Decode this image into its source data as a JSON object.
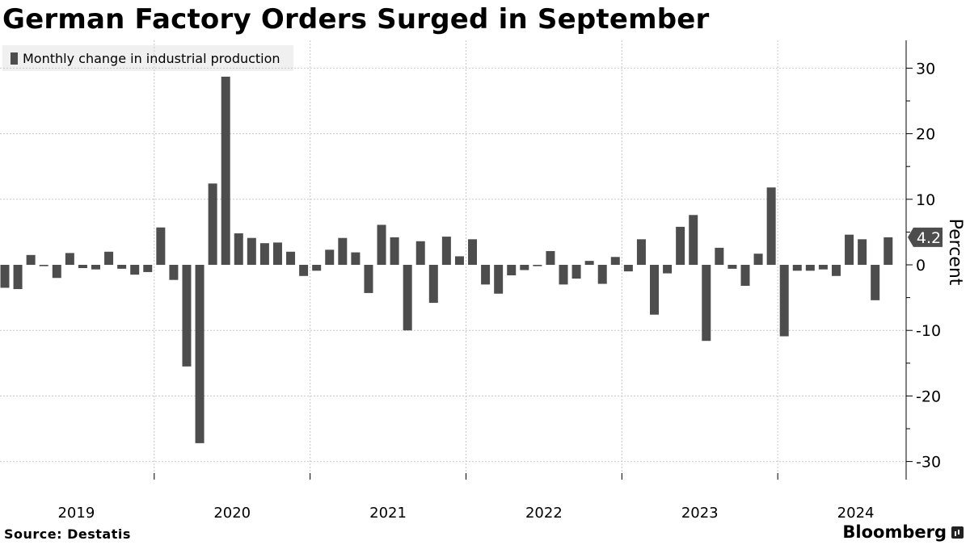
{
  "header": {
    "title": "German Factory Orders Surged in September"
  },
  "legend": {
    "label": "Monthly change in industrial production"
  },
  "footer": {
    "source": "Source:  Destatis",
    "brand": "Bloomberg"
  },
  "colors": {
    "bar": "#4d4d4d",
    "grid": "#c8c8c8",
    "axis": "#000000",
    "callout": "#4d4d4d"
  },
  "chart_data": {
    "type": "bar",
    "title": "German Factory Orders Surged in September",
    "ylabel": "Percent",
    "ylim": [
      -33,
      34
    ],
    "yticks": [
      30,
      20,
      10,
      0,
      -10,
      -20,
      -30
    ],
    "x_tick_labels": [
      "2019",
      "2020",
      "2021",
      "2022",
      "2023",
      "2024"
    ],
    "start": "2019-01",
    "series": [
      {
        "name": "Monthly change in industrial production",
        "values": [
          -3.5,
          -3.7,
          1.5,
          -0.2,
          -2.0,
          1.8,
          -0.5,
          -0.7,
          2.0,
          -0.6,
          -1.5,
          -1.1,
          5.7,
          -2.3,
          -15.5,
          -27.2,
          12.4,
          28.7,
          4.8,
          4.1,
          3.3,
          3.4,
          2.0,
          -1.7,
          -0.9,
          2.3,
          4.1,
          1.9,
          -4.3,
          6.1,
          4.2,
          -10.0,
          3.6,
          -5.8,
          4.3,
          1.3,
          3.9,
          -3.0,
          -4.4,
          -1.6,
          -0.8,
          -0.2,
          2.1,
          -3.0,
          -2.1,
          0.6,
          -2.9,
          1.2,
          -1.0,
          3.9,
          -7.6,
          -1.3,
          5.8,
          7.6,
          -11.6,
          2.6,
          -0.6,
          -3.2,
          1.7,
          11.8,
          -10.9,
          -0.9,
          -0.9,
          -0.7,
          -1.7,
          4.6,
          3.9,
          -5.4,
          4.2
        ]
      }
    ],
    "last_value_label": "4.2"
  }
}
